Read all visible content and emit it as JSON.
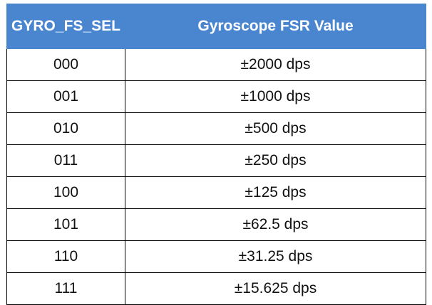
{
  "table": {
    "headers": [
      "GYRO_FS_SEL",
      "Gyroscope FSR Value"
    ],
    "header_color": "#4a86cf",
    "rows": [
      [
        "000",
        "±2000 dps"
      ],
      [
        "001",
        "±1000 dps"
      ],
      [
        "010",
        "±500 dps"
      ],
      [
        "011",
        "±250 dps"
      ],
      [
        "100",
        "±125 dps"
      ],
      [
        "101",
        "±62.5 dps"
      ],
      [
        "110",
        "±31.25 dps"
      ],
      [
        "111",
        "±15.625 dps"
      ]
    ]
  }
}
